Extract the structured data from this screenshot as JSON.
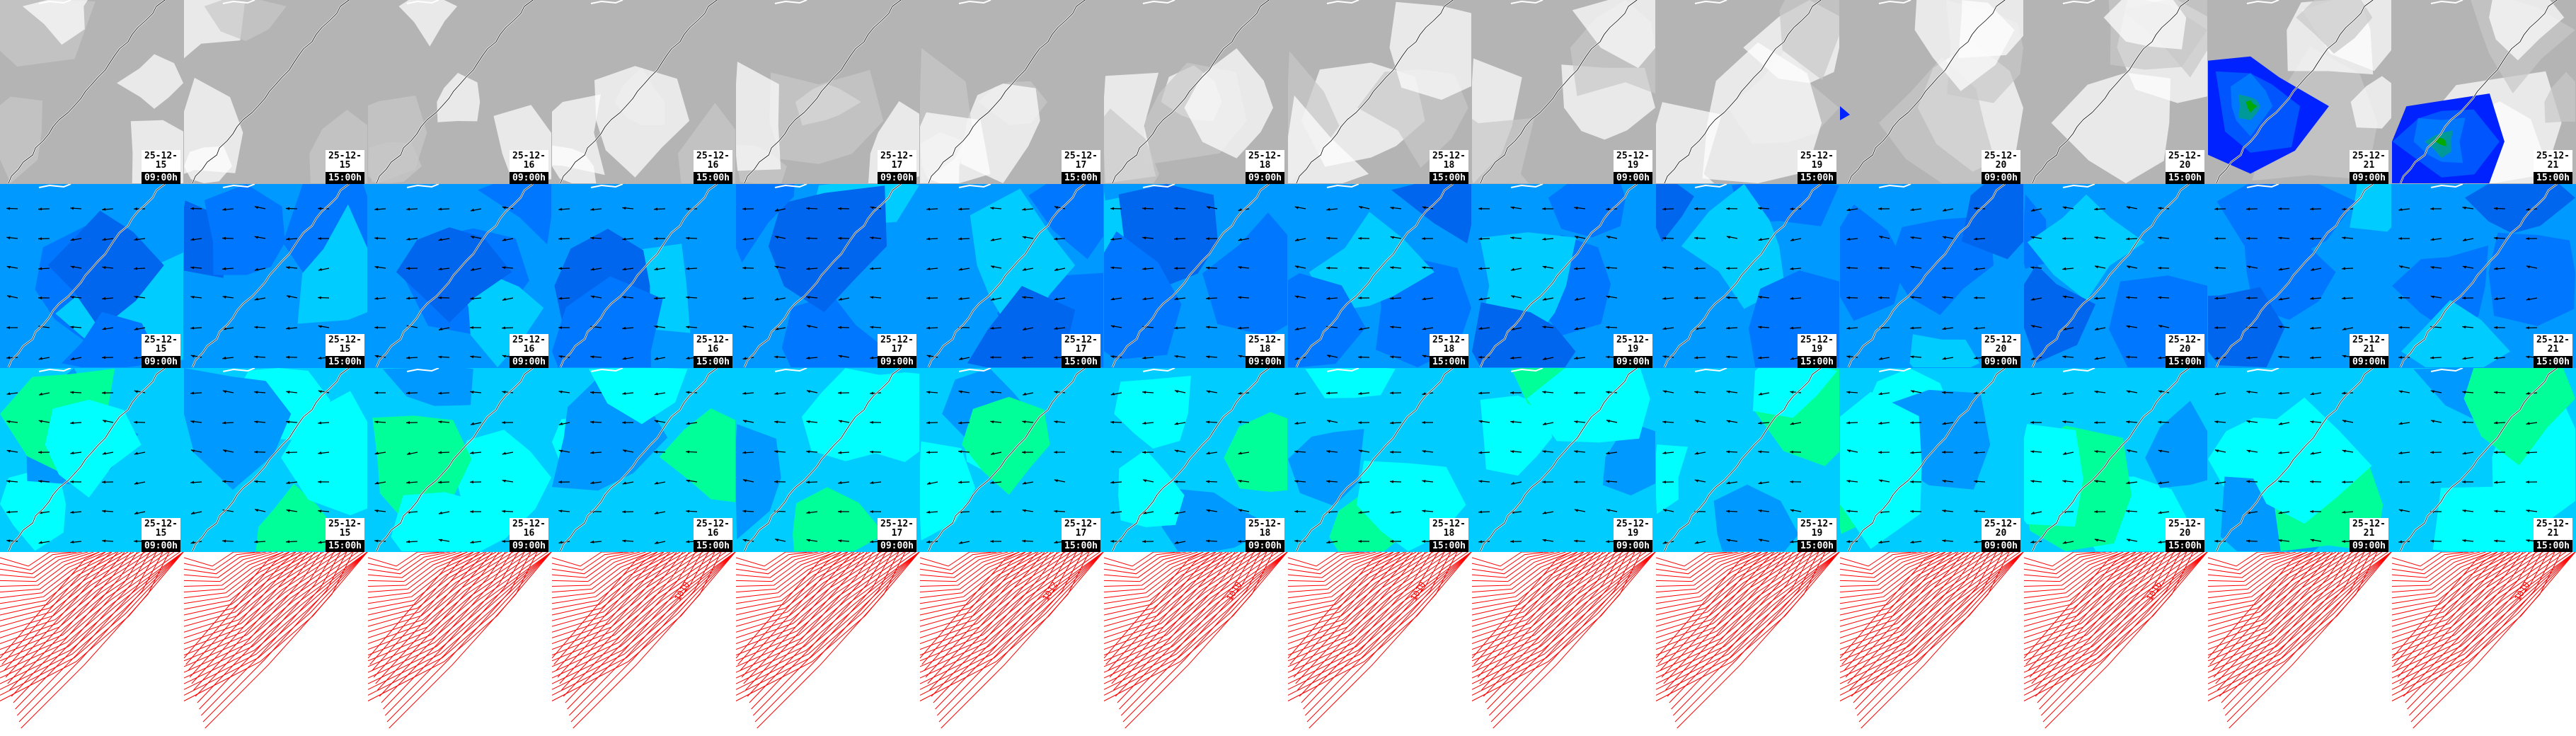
{
  "layers": [
    {
      "id": "cloud",
      "kind": "grayscale-field",
      "colors": [
        "#b4b4b4",
        "#c8c8c8",
        "#ffffff"
      ],
      "overlay_colors": [
        "#0022ff",
        "#0055ff",
        "#0077ff",
        "#009999",
        "#00aa00"
      ]
    },
    {
      "id": "wind-upper",
      "kind": "filled-contour-with-arrows",
      "colors": [
        "#0099ff",
        "#0077ff",
        "#00ccff",
        "#0066ee"
      ]
    },
    {
      "id": "wind-lower",
      "kind": "filled-contour-with-arrows",
      "colors": [
        "#00ccff",
        "#00ffff",
        "#0099ff",
        "#00ff99"
      ]
    },
    {
      "id": "pressure",
      "kind": "isobars",
      "colors": [
        "#ff0000"
      ]
    }
  ],
  "frames": [
    {
      "date": "25-12-15",
      "time": "09:00h",
      "isobar_label": ""
    },
    {
      "date": "25-12-15",
      "time": "15:00h",
      "isobar_label": ""
    },
    {
      "date": "25-12-16",
      "time": "09:00h",
      "isobar_label": ""
    },
    {
      "date": "25-12-16",
      "time": "15:00h",
      "isobar_label": "1010"
    },
    {
      "date": "25-12-17",
      "time": "09:00h",
      "isobar_label": ""
    },
    {
      "date": "25-12-17",
      "time": "15:00h",
      "isobar_label": "1012"
    },
    {
      "date": "25-12-18",
      "time": "09:00h",
      "isobar_label": "1010"
    },
    {
      "date": "25-12-18",
      "time": "15:00h",
      "isobar_label": "1010"
    },
    {
      "date": "25-12-19",
      "time": "09:00h",
      "isobar_label": ""
    },
    {
      "date": "25-12-19",
      "time": "15:00h",
      "isobar_label": ""
    },
    {
      "date": "25-12-20",
      "time": "09:00h",
      "isobar_label": ""
    },
    {
      "date": "25-12-20",
      "time": "15:00h",
      "isobar_label": "1016"
    },
    {
      "date": "25-12-21",
      "time": "09:00h",
      "isobar_label": ""
    },
    {
      "date": "25-12-21",
      "time": "15:00h",
      "isobar_label": "1010"
    }
  ]
}
